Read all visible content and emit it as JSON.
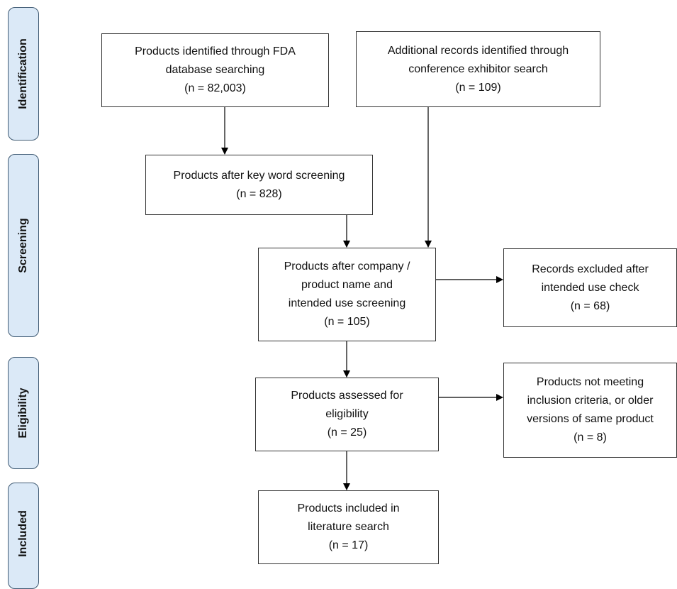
{
  "stages": [
    {
      "id": "identification",
      "label": "Identification"
    },
    {
      "id": "screening",
      "label": "Screening"
    },
    {
      "id": "eligibility",
      "label": "Eligibility"
    },
    {
      "id": "included",
      "label": "Included"
    }
  ],
  "boxes": {
    "fda_search": "Products identified through FDA\ndatabase searching\n(n = 82,003)",
    "conference_search": "Additional records identified through\nconference exhibitor search\n(n = 109)",
    "keyword_screening": "Products after key word screening\n(n = 828)",
    "company_screening": "Products after company /\nproduct name and\nintended use screening\n(n = 105)",
    "excluded_intended_use": "Records excluded after\nintended use check\n(n = 68)",
    "assessed_eligibility": "Products assessed for\neligibility\n(n = 25)",
    "not_meeting_criteria": "Products not meeting\ninclusion criteria, or older\nversions of same product\n(n = 8)",
    "included_literature": "Products included in\nliterature search\n(n = 17)"
  },
  "colors": {
    "stage_fill": "#dbe9f7",
    "stage_border": "#3f5a73",
    "box_border": "#333333",
    "arrow": "#000000"
  }
}
